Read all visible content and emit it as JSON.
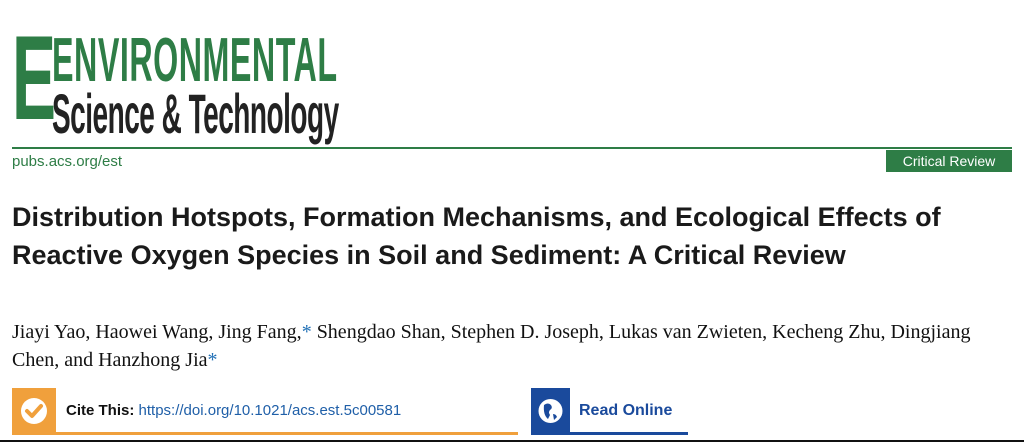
{
  "journal": {
    "logo_line1": "ENVIRONMENTAL",
    "logo_line2": "Science & Technology",
    "url": "pubs.acs.org/est"
  },
  "article_type": "Critical Review",
  "title": "Distribution Hotspots, Formation Mechanisms, and Ecological Effects of Reactive Oxygen Species in Soil and Sediment: A Critical Review",
  "authors": {
    "part1": "Jiayi Yao, Haowei Wang, Jing Fang,",
    "star1": "*",
    "part2": " Shengdao Shan, Stephen D. Joseph, Lukas van Zwieten, Kecheng Zhu, Dingjiang Chen, and Hanzhong Jia",
    "star2": "*"
  },
  "cite": {
    "label": "Cite This:",
    "doi": "https://doi.org/10.1021/acs.est.5c00581",
    "icon": "checkmark-icon"
  },
  "read_online": {
    "label": "Read Online",
    "icon": "globe-icon"
  },
  "colors": {
    "brand_green": "#2e7d46",
    "cite_orange": "#f0a03c",
    "read_blue": "#1a4a9c",
    "link_blue": "#1f5fa8"
  }
}
